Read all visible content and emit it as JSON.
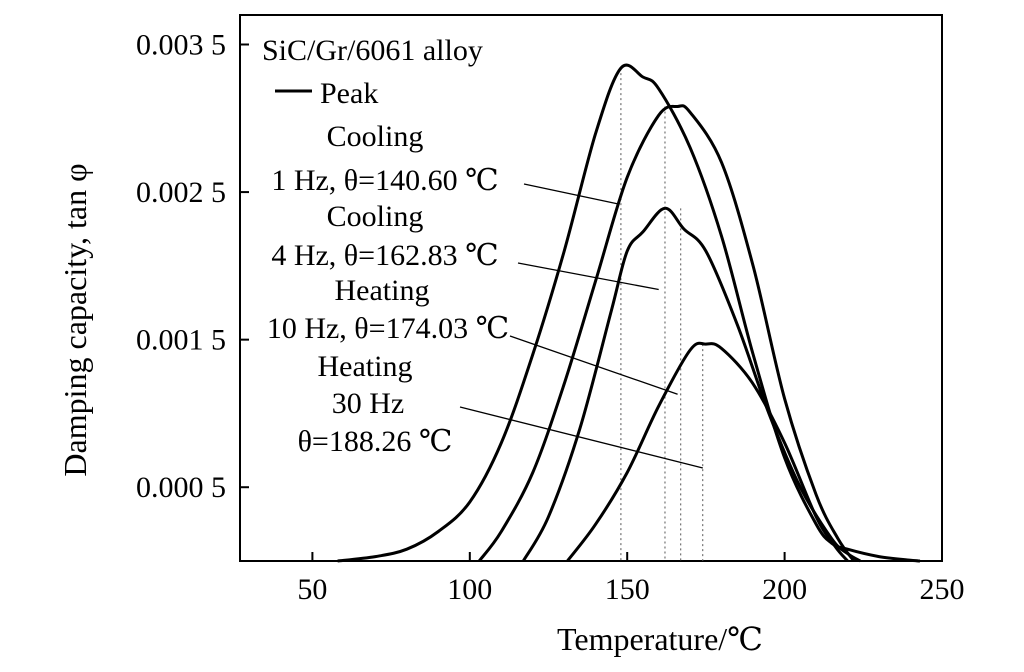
{
  "chart_data": {
    "type": "line",
    "xlabel": "Temperature/℃",
    "ylabel": "Damping capacity, tan φ",
    "xlim": [
      27,
      250
    ],
    "ylim": [
      0,
      0.0037
    ],
    "xticks": [
      50,
      100,
      150,
      200,
      250
    ],
    "xtick_labels": [
      "50",
      "100",
      "150",
      "200",
      "250"
    ],
    "yticks": [
      0.0005,
      0.0015,
      0.0025,
      0.0035
    ],
    "ytick_labels": [
      "0.000 5",
      "0.001 5",
      "0.002 5",
      "0.003 5"
    ],
    "grid": false,
    "legend": {
      "title": "SiC/Gr/6061 alloy",
      "line_label": "Peak"
    },
    "series": [
      {
        "x": [
          58,
          70,
          80,
          90,
          100,
          110,
          120,
          130,
          140,
          148,
          155,
          160,
          170,
          180,
          190,
          200,
          210,
          215,
          220,
          230,
          240,
          243
        ],
        "values": [
          0,
          3e-05,
          8e-05,
          0.0002,
          0.0004,
          0.0008,
          0.0014,
          0.0021,
          0.0029,
          0.00334,
          0.00328,
          0.0032,
          0.0028,
          0.0022,
          0.0014,
          0.0007,
          0.00025,
          0.00012,
          8e-05,
          3e-05,
          5e-06,
          0
        ]
      },
      {
        "x": [
          103,
          110,
          120,
          130,
          140,
          150,
          160,
          166,
          170,
          180,
          190,
          200,
          210,
          217,
          222
        ],
        "values": [
          0,
          0.0002,
          0.0006,
          0.0012,
          0.0019,
          0.0026,
          0.00302,
          0.00308,
          0.00304,
          0.0027,
          0.002,
          0.0011,
          0.00045,
          0.00015,
          0
        ]
      },
      {
        "x": [
          117,
          125,
          135,
          145,
          150,
          155,
          162,
          168,
          175,
          185,
          195,
          205,
          215,
          220,
          224
        ],
        "values": [
          0,
          0.0003,
          0.0009,
          0.0017,
          0.0021,
          0.00223,
          0.00239,
          0.00225,
          0.0021,
          0.0016,
          0.001,
          0.0005,
          0.00015,
          5e-05,
          0
        ]
      },
      {
        "x": [
          131,
          140,
          150,
          160,
          170,
          175,
          180,
          190,
          200,
          210,
          216,
          220
        ],
        "values": [
          0,
          0.00025,
          0.0006,
          0.00105,
          0.00143,
          0.00147,
          0.00144,
          0.0012,
          0.0008,
          0.0003,
          0.0001,
          0
        ]
      }
    ],
    "peak_markers": [
      148,
      162,
      167,
      174
    ],
    "annotations": [
      {
        "lines": [
          "Cooling",
          "1 Hz, θ=140.60 ℃"
        ],
        "point": [
          147,
          0.00242
        ]
      },
      {
        "lines": [
          "Cooling",
          "4 Hz, θ=162.83 ℃"
        ],
        "point": [
          160,
          0.00184
        ]
      },
      {
        "lines": [
          "Heating",
          "10 Hz, θ=174.03 ℃"
        ],
        "point": [
          166,
          0.00113
        ]
      },
      {
        "lines": [
          "Heating",
          "30 Hz",
          "θ=188.26 ℃"
        ],
        "point": [
          174,
          0.00063
        ]
      }
    ]
  }
}
